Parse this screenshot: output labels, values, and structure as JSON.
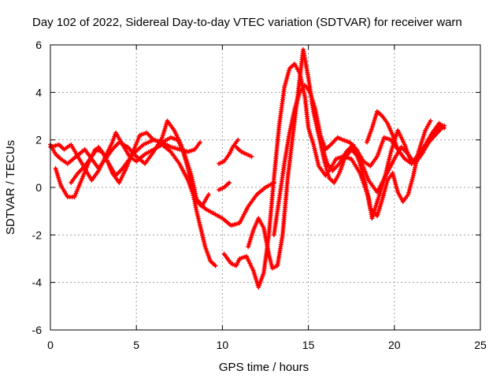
{
  "chart_data": {
    "type": "scatter",
    "title": "Day 102 of 2022, Sidereal Day-to-day VTEC variation (SDTVAR) for receiver warn",
    "xlabel": "GPS time / hours",
    "ylabel": "SDTVAR / TECUs",
    "xlim": [
      0,
      25
    ],
    "ylim": [
      -6,
      6
    ],
    "xticks": [
      0,
      5,
      10,
      15,
      20,
      25
    ],
    "yticks": [
      -6,
      -4,
      -2,
      0,
      2,
      4,
      6
    ],
    "grid": true,
    "marker": "plus",
    "color": "#ff0000",
    "series": [
      {
        "x": [
          0.0,
          0.3,
          0.6,
          1.0,
          1.5,
          2.0,
          2.4,
          2.8,
          3.2,
          3.6,
          4.0,
          4.5,
          5.0,
          5.5,
          6.0,
          6.5,
          6.8,
          7.2,
          7.6,
          8.0,
          8.5,
          9.0,
          9.3,
          9.6
        ],
        "y": [
          1.8,
          1.4,
          1.2,
          1.0,
          1.3,
          1.6,
          1.2,
          0.8,
          1.2,
          1.6,
          1.9,
          1.7,
          1.3,
          1.0,
          1.5,
          2.1,
          2.8,
          2.4,
          1.8,
          0.8,
          -1.0,
          -2.5,
          -3.1,
          -3.3
        ]
      },
      {
        "x": [
          0.3,
          0.6,
          1.0,
          1.4,
          1.8,
          2.2,
          2.6,
          3.0,
          3.4,
          3.8,
          4.2,
          4.8,
          5.4,
          6.0,
          6.5,
          7.0,
          7.5,
          8.0,
          8.4,
          8.7
        ],
        "y": [
          0.8,
          0.1,
          -0.4,
          -0.4,
          0.3,
          1.0,
          1.6,
          1.5,
          1.0,
          0.5,
          0.8,
          1.4,
          1.8,
          2.0,
          1.9,
          1.7,
          1.6,
          1.5,
          1.6,
          1.9
        ]
      },
      {
        "x": [
          0.0,
          0.5,
          0.8,
          1.2,
          1.6,
          2.0,
          2.4,
          2.8,
          3.2,
          3.6,
          3.8,
          4.2,
          4.6,
          5.0,
          5.5,
          6.0,
          6.5,
          7.0,
          7.5,
          8.0,
          8.4,
          8.8,
          9.2
        ],
        "y": [
          1.7,
          1.8,
          1.6,
          1.8,
          1.3,
          0.8,
          0.3,
          0.7,
          1.3,
          1.9,
          2.3,
          1.8,
          1.3,
          1.1,
          1.4,
          1.6,
          1.8,
          1.5,
          1.0,
          0.3,
          -0.5,
          -0.8,
          -0.3
        ]
      },
      {
        "x": [
          1.2,
          1.6,
          2.0,
          2.4,
          2.8,
          3.2,
          3.6,
          4.0,
          4.4,
          4.8,
          5.2,
          5.6,
          6.0,
          6.5,
          7.0,
          7.4,
          7.8,
          8.2,
          8.5,
          9.0,
          9.5,
          10.0,
          10.5,
          11.0,
          11.5,
          12.0,
          12.5,
          13.0
        ],
        "y": [
          0.2,
          0.6,
          0.9,
          1.3,
          1.7,
          1.3,
          0.6,
          0.2,
          0.8,
          1.5,
          2.2,
          2.3,
          2.0,
          1.9,
          2.1,
          2.0,
          1.4,
          0.5,
          -0.5,
          -0.9,
          -1.1,
          -1.3,
          -1.6,
          -1.5,
          -0.8,
          -0.3,
          0.0,
          0.2
        ]
      },
      {
        "x": [
          9.8,
          10.1,
          10.4
        ],
        "y": [
          -0.1,
          0.0,
          0.2
        ]
      },
      {
        "x": [
          9.8,
          10.1,
          10.4,
          10.6,
          10.9
        ],
        "y": [
          1.0,
          1.1,
          1.4,
          1.7,
          2.0
        ]
      },
      {
        "x": [
          10.8,
          11.1,
          11.4,
          11.7
        ],
        "y": [
          1.7,
          1.5,
          1.4,
          1.3
        ]
      },
      {
        "x": [
          10.1,
          10.5,
          10.8,
          11.0,
          11.4,
          11.8,
          12.1,
          12.4,
          12.7,
          13.0,
          13.3,
          13.6,
          13.9,
          14.2,
          14.5,
          14.8,
          15.0,
          15.3,
          15.6,
          16.0,
          16.3,
          16.6,
          17.0,
          17.5,
          18.0,
          18.5,
          18.7,
          19.0,
          19.4,
          19.8,
          20.2,
          20.6,
          21.0,
          21.5,
          22.0,
          22.5,
          22.9
        ],
        "y": [
          -2.8,
          -3.2,
          -3.3,
          -3.0,
          -2.9,
          -3.5,
          -4.2,
          -3.6,
          -2.0,
          0.4,
          2.6,
          4.2,
          5.0,
          5.2,
          4.8,
          3.8,
          2.5,
          1.8,
          0.9,
          0.5,
          0.8,
          1.2,
          1.3,
          1.2,
          0.6,
          -0.4,
          -1.3,
          -0.6,
          0.3,
          1.5,
          2.4,
          1.8,
          1.0,
          1.4,
          1.9,
          2.3,
          2.6
        ]
      },
      {
        "x": [
          11.5,
          11.8,
          12.1,
          12.4,
          12.7,
          12.9,
          13.2,
          13.5,
          13.8,
          14.1,
          14.4,
          14.7,
          15.0,
          15.3,
          15.6,
          15.9,
          16.2,
          16.5,
          16.8,
          17.1,
          17.5,
          18.0,
          18.5,
          19.0,
          19.5,
          20.0,
          20.4,
          20.8,
          21.2,
          21.6,
          22.0,
          22.4,
          22.8
        ],
        "y": [
          -2.5,
          -1.8,
          -1.3,
          -1.7,
          -2.8,
          -3.4,
          -3.3,
          -2.0,
          0.4,
          2.2,
          4.0,
          5.8,
          4.6,
          3.2,
          2.2,
          1.2,
          0.4,
          0.2,
          0.6,
          1.2,
          1.6,
          1.2,
          0.3,
          -0.2,
          0.5,
          1.2,
          1.7,
          1.4,
          1.0,
          1.4,
          1.9,
          2.4,
          2.6
        ]
      },
      {
        "x": [
          13.0,
          13.3,
          13.6,
          13.9,
          14.2,
          14.5,
          14.8,
          15.1,
          15.4,
          15.7,
          16.0,
          16.3,
          16.7,
          17.0,
          17.4,
          17.8,
          18.2,
          18.6,
          19.0,
          19.4,
          19.8,
          20.2,
          20.6,
          21.0,
          21.4,
          21.8,
          22.2,
          22.6,
          22.9
        ],
        "y": [
          -2.0,
          -0.5,
          1.0,
          2.3,
          3.3,
          4.0,
          4.3,
          4.0,
          3.3,
          2.2,
          1.6,
          1.8,
          2.1,
          2.0,
          1.9,
          1.6,
          1.1,
          0.9,
          1.3,
          2.1,
          2.0,
          1.6,
          1.2,
          1.0,
          1.4,
          1.8,
          2.3,
          2.7,
          2.5
        ]
      },
      {
        "x": [
          15.2,
          15.5,
          15.8,
          16.1,
          16.4,
          16.8,
          17.2,
          17.6,
          18.0,
          18.3,
          18.6,
          19.0,
          19.3,
          19.6,
          19.9,
          20.2,
          20.5,
          20.8,
          21.1,
          21.4,
          21.8,
          22.1
        ],
        "y": [
          3.6,
          2.6,
          1.7,
          1.0,
          0.7,
          1.0,
          1.5,
          1.8,
          1.0,
          0.2,
          -0.9,
          -1.2,
          -0.5,
          0.3,
          0.6,
          -0.2,
          -0.6,
          -0.3,
          0.5,
          1.5,
          2.4,
          2.8
        ]
      },
      {
        "x": [
          18.4,
          18.7,
          19.0,
          19.3,
          19.6,
          19.9,
          20.2
        ],
        "y": [
          1.9,
          2.5,
          3.2,
          3.0,
          2.7,
          2.2,
          1.6
        ]
      }
    ]
  }
}
